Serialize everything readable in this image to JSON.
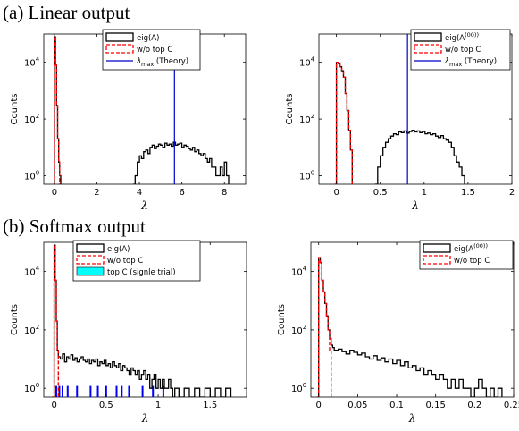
{
  "sections": {
    "a_title": "(a) Linear output",
    "b_title": "(b) Softmax output"
  },
  "colors": {
    "eig": "#000000",
    "without_top_c": "#ff0000",
    "lambda_max": "#0000cc",
    "top_c_fill": "#00ffff",
    "top_c_bar": "#0000ff"
  },
  "chart_data": [
    {
      "type": "histogram",
      "panel": "a-left",
      "ylabel": "Counts",
      "xlabel": "λ",
      "xlim": [
        -0.5,
        9
      ],
      "ylim": [
        0.5,
        100000
      ],
      "yscale": "log",
      "xticks": [
        0,
        2,
        4,
        6,
        8
      ],
      "xtick_labels": [
        "0",
        "2",
        "4",
        "6",
        "8"
      ],
      "yticks": [
        1,
        100,
        10000
      ],
      "ytick_labels": [
        "10^0",
        "10^2",
        "10^4"
      ],
      "legend": [
        {
          "label": "eig(A)",
          "style": "box",
          "color": "#000000"
        },
        {
          "label": "w/o top C",
          "style": "dashed",
          "color": "#ff0000"
        },
        {
          "label": "λmax (Theory)",
          "style": "line",
          "color": "#0000cc"
        }
      ],
      "series": [
        {
          "name": "eig(A)",
          "style": "solid",
          "color": "#000000",
          "x": [
            -0.05,
            0.0,
            0.05,
            0.1,
            0.15,
            0.2,
            0.25,
            0.3
          ],
          "y": [
            0.5,
            80000,
            8000,
            300,
            20,
            3,
            1,
            0.5
          ]
        },
        {
          "name": "eig(A)",
          "style": "solid",
          "color": "#000000",
          "x": [
            3.7,
            3.8,
            3.9,
            4.0,
            4.1,
            4.2,
            4.3,
            4.4,
            4.5,
            4.6,
            4.7,
            4.8,
            4.9,
            5.0,
            5.1,
            5.2,
            5.3,
            5.4,
            5.5,
            5.6,
            5.7,
            5.8,
            5.9,
            6.0,
            6.1,
            6.2,
            6.3,
            6.4,
            6.5,
            6.6,
            6.7,
            6.8,
            6.9,
            7.0,
            7.1,
            7.2,
            7.3,
            7.4,
            7.5,
            7.6,
            7.7,
            7.8,
            7.9,
            8.0,
            8.1,
            8.2
          ],
          "y": [
            0.5,
            1,
            3,
            5,
            4,
            7,
            8,
            6,
            10,
            12,
            9,
            11,
            13,
            12,
            10,
            14,
            12,
            13,
            11,
            15,
            12,
            13,
            14,
            10,
            12,
            11,
            9,
            8,
            10,
            7,
            8,
            6,
            5,
            6,
            4,
            3,
            4,
            2,
            2,
            1,
            1,
            2,
            1,
            3,
            1,
            0.5
          ]
        },
        {
          "name": "w/o top C",
          "style": "dashed",
          "color": "#ff0000",
          "x": [
            -0.05,
            0.0,
            0.05,
            0.1,
            0.15,
            0.2,
            0.25
          ],
          "y": [
            0.5,
            80000,
            8000,
            300,
            20,
            3,
            0.5
          ]
        }
      ],
      "vline": {
        "name": "λmax (Theory)",
        "x": 5.65,
        "color": "#0000cc"
      }
    },
    {
      "type": "histogram",
      "panel": "a-right",
      "ylabel": "Counts",
      "xlabel": "λ",
      "xlim": [
        -0.2,
        2
      ],
      "ylim": [
        0.5,
        100000
      ],
      "yscale": "log",
      "xticks": [
        0,
        0.5,
        1,
        1.5,
        2
      ],
      "xtick_labels": [
        "0",
        "0.5",
        "1",
        "1.5",
        "2"
      ],
      "yticks": [
        1,
        100,
        10000
      ],
      "ytick_labels": [
        "10^0",
        "10^2",
        "10^4"
      ],
      "legend": [
        {
          "label": "eig(A^(00))",
          "style": "box",
          "color": "#000000"
        },
        {
          "label": "w/o top C",
          "style": "dashed",
          "color": "#ff0000"
        },
        {
          "label": "λmax (Theory)",
          "style": "line",
          "color": "#0000cc"
        }
      ],
      "series": [
        {
          "name": "eig(A^(00))",
          "style": "solid",
          "color": "#000000",
          "x": [
            -0.02,
            0.0,
            0.02,
            0.04,
            0.06,
            0.08,
            0.1,
            0.12,
            0.14,
            0.16,
            0.18
          ],
          "y": [
            0.5,
            10000,
            9000,
            7000,
            5000,
            3000,
            800,
            200,
            40,
            8,
            0.5
          ]
        },
        {
          "name": "eig(A^(00))",
          "style": "solid",
          "color": "#000000",
          "x": [
            0.44,
            0.47,
            0.5,
            0.53,
            0.56,
            0.59,
            0.62,
            0.65,
            0.68,
            0.71,
            0.74,
            0.77,
            0.8,
            0.83,
            0.86,
            0.89,
            0.92,
            0.95,
            0.98,
            1.01,
            1.04,
            1.07,
            1.1,
            1.13,
            1.16,
            1.19,
            1.22,
            1.25,
            1.28,
            1.31,
            1.34,
            1.37,
            1.4,
            1.43,
            1.46
          ],
          "y": [
            0.5,
            2,
            5,
            10,
            15,
            20,
            25,
            30,
            28,
            35,
            33,
            38,
            32,
            36,
            40,
            35,
            38,
            33,
            36,
            30,
            32,
            28,
            30,
            25,
            22,
            26,
            20,
            18,
            15,
            10,
            5,
            3,
            2,
            1,
            0.5
          ]
        },
        {
          "name": "w/o top C",
          "style": "dashed",
          "color": "#ff0000",
          "x": [
            -0.02,
            0.0,
            0.02,
            0.04,
            0.06,
            0.08,
            0.1,
            0.12,
            0.14,
            0.16,
            0.18
          ],
          "y": [
            0.5,
            10000,
            9000,
            7000,
            5000,
            3000,
            800,
            200,
            40,
            8,
            0.5
          ]
        }
      ],
      "vline": {
        "name": "λmax (Theory)",
        "x": 0.81,
        "color": "#0000cc"
      }
    },
    {
      "type": "histogram",
      "panel": "b-left",
      "ylabel": "Counts",
      "xlabel": "λ",
      "xlim": [
        -0.1,
        1.85
      ],
      "ylim": [
        0.5,
        100000
      ],
      "yscale": "log",
      "xticks": [
        0,
        0.5,
        1,
        1.5
      ],
      "xtick_labels": [
        "0",
        "0.5",
        "1",
        "1.5"
      ],
      "yticks": [
        1,
        100,
        10000
      ],
      "ytick_labels": [
        "10^0",
        "10^2",
        "10^4"
      ],
      "legend": [
        {
          "label": "eig(A)",
          "style": "box",
          "color": "#000000"
        },
        {
          "label": "w/o top C",
          "style": "dashed",
          "color": "#ff0000"
        },
        {
          "label": "top C (signle trial)",
          "style": "filled",
          "color": "#00ffff"
        }
      ],
      "series": [
        {
          "name": "eig(A)",
          "style": "solid",
          "color": "#000000",
          "x": [
            -0.02,
            0.0,
            0.01,
            0.02,
            0.03,
            0.04,
            0.06,
            0.08,
            0.1,
            0.12,
            0.14,
            0.16,
            0.18,
            0.2,
            0.22,
            0.24,
            0.26,
            0.28,
            0.3,
            0.32,
            0.34,
            0.36,
            0.38,
            0.4,
            0.42,
            0.44,
            0.46,
            0.48,
            0.5,
            0.52,
            0.54,
            0.56,
            0.58,
            0.6,
            0.62,
            0.64,
            0.66,
            0.68,
            0.7,
            0.72,
            0.74,
            0.76,
            0.78,
            0.8,
            0.82,
            0.84,
            0.86,
            0.88,
            0.9,
            0.92,
            0.94,
            0.96,
            0.98,
            1.0,
            1.02,
            1.04,
            1.06,
            1.08,
            1.1,
            1.12,
            1.14,
            1.16,
            1.18,
            1.2,
            1.25,
            1.3,
            1.35,
            1.4,
            1.45,
            1.5,
            1.55,
            1.6,
            1.65,
            1.7
          ],
          "y": [
            0.5,
            80000,
            5000,
            200,
            20,
            12,
            10,
            15,
            8,
            12,
            10,
            14,
            9,
            11,
            8,
            10,
            12,
            9,
            8,
            10,
            7,
            9,
            8,
            10,
            6,
            8,
            7,
            9,
            6,
            7,
            5,
            8,
            6,
            5,
            7,
            4,
            6,
            5,
            4,
            3,
            5,
            4,
            3,
            4,
            2,
            3,
            4,
            2,
            3,
            1,
            2,
            3,
            1,
            2,
            1,
            2,
            1,
            1,
            2,
            1,
            0.5,
            1,
            1,
            0.5,
            1,
            0.5,
            1,
            0.5,
            1,
            0.5,
            1,
            0.5,
            1,
            0.5
          ]
        },
        {
          "name": "w/o top C",
          "style": "dashed",
          "color": "#ff0000",
          "x": [
            -0.02,
            0.0,
            0.01,
            0.02,
            0.03,
            0.04
          ],
          "y": [
            0.5,
            80000,
            5000,
            200,
            20,
            0.5
          ]
        }
      ],
      "top_c_x": [
        0.02,
        0.05,
        0.08,
        0.13,
        0.22,
        0.35,
        0.42,
        0.5,
        0.6,
        0.65,
        0.72,
        0.85,
        0.95,
        1.05
      ]
    },
    {
      "type": "histogram",
      "panel": "b-right",
      "ylabel": "Counts",
      "xlabel": "λ",
      "xlim": [
        -0.01,
        0.25
      ],
      "ylim": [
        0.5,
        100000
      ],
      "yscale": "log",
      "xticks": [
        0,
        0.05,
        0.1,
        0.15,
        0.2,
        0.25
      ],
      "xtick_labels": [
        "0",
        "0.05",
        "0.1",
        "0.15",
        "0.2",
        "0.25"
      ],
      "yticks": [
        1,
        100,
        10000
      ],
      "ytick_labels": [
        "10^0",
        "10^2",
        "10^4"
      ],
      "legend": [
        {
          "label": "eig(A^(00))",
          "style": "box",
          "color": "#000000"
        },
        {
          "label": "w/o top C",
          "style": "dashed",
          "color": "#ff0000"
        }
      ],
      "series": [
        {
          "name": "eig(A^(00))",
          "style": "solid",
          "color": "#000000",
          "x": [
            -0.002,
            0.0,
            0.002,
            0.004,
            0.006,
            0.008,
            0.01,
            0.012,
            0.014,
            0.016,
            0.018,
            0.02,
            0.025,
            0.03,
            0.035,
            0.04,
            0.045,
            0.05,
            0.055,
            0.06,
            0.065,
            0.07,
            0.075,
            0.08,
            0.085,
            0.09,
            0.095,
            0.1,
            0.105,
            0.11,
            0.115,
            0.12,
            0.125,
            0.13,
            0.135,
            0.14,
            0.145,
            0.15,
            0.155,
            0.16,
            0.165,
            0.17,
            0.175,
            0.18,
            0.185,
            0.19,
            0.195,
            0.2,
            0.205,
            0.21,
            0.215,
            0.22,
            0.225,
            0.23,
            0.235
          ],
          "y": [
            0.5,
            30000,
            20000,
            5000,
            2000,
            800,
            300,
            100,
            50,
            30,
            25,
            20,
            22,
            18,
            15,
            20,
            17,
            14,
            16,
            12,
            10,
            13,
            9,
            11,
            8,
            10,
            7,
            9,
            6,
            8,
            5,
            6,
            4,
            5,
            3,
            4,
            3,
            2,
            3,
            2,
            1,
            2,
            1,
            2,
            1,
            1,
            0.5,
            1,
            2,
            1,
            0.5,
            1,
            0.5,
            1,
            0.5
          ]
        },
        {
          "name": "w/o top C",
          "style": "dashed",
          "color": "#ff0000",
          "x": [
            -0.002,
            0.0,
            0.002,
            0.004,
            0.006,
            0.008,
            0.01,
            0.012,
            0.014,
            0.016
          ],
          "y": [
            0.5,
            30000,
            20000,
            5000,
            2000,
            800,
            300,
            100,
            20,
            0.5
          ]
        }
      ]
    }
  ]
}
